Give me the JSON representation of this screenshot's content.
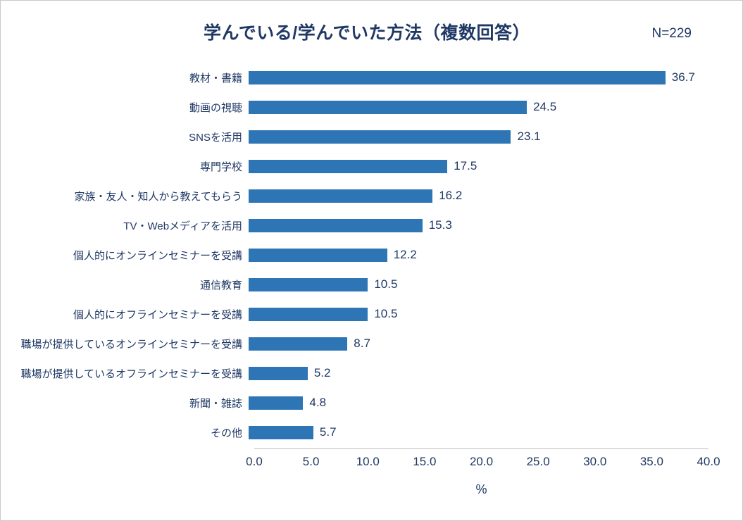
{
  "chart_data": {
    "type": "bar",
    "orientation": "horizontal",
    "title": "学んでいる/学んでいた方法（複数回答）",
    "n_label": "N=229",
    "categories": [
      "教材・書籍",
      "動画の視聴",
      "SNSを活用",
      "専門学校",
      "家族・友人・知人から教えてもらう",
      "TV・Webメディアを活用",
      "個人的にオンラインセミナーを受講",
      "通信教育",
      "個人的にオフラインセミナーを受講",
      "職場が提供しているオンラインセミナーを受講",
      "職場が提供しているオフラインセミナーを受講",
      "新聞・雑誌",
      "その他"
    ],
    "values": [
      36.7,
      24.5,
      23.1,
      17.5,
      16.2,
      15.3,
      12.2,
      10.5,
      10.5,
      8.7,
      5.2,
      4.8,
      5.7
    ],
    "xlabel": "%",
    "xlim": [
      0,
      40
    ],
    "xticks": [
      "0.0",
      "5.0",
      "10.0",
      "15.0",
      "20.0",
      "25.0",
      "30.0",
      "35.0",
      "40.0"
    ],
    "grid": false,
    "legend": false,
    "colors": {
      "bar": "#2e75b6",
      "title": "#1f3864",
      "label": "#1f3864",
      "axis_line": "#bfbfbf"
    }
  }
}
